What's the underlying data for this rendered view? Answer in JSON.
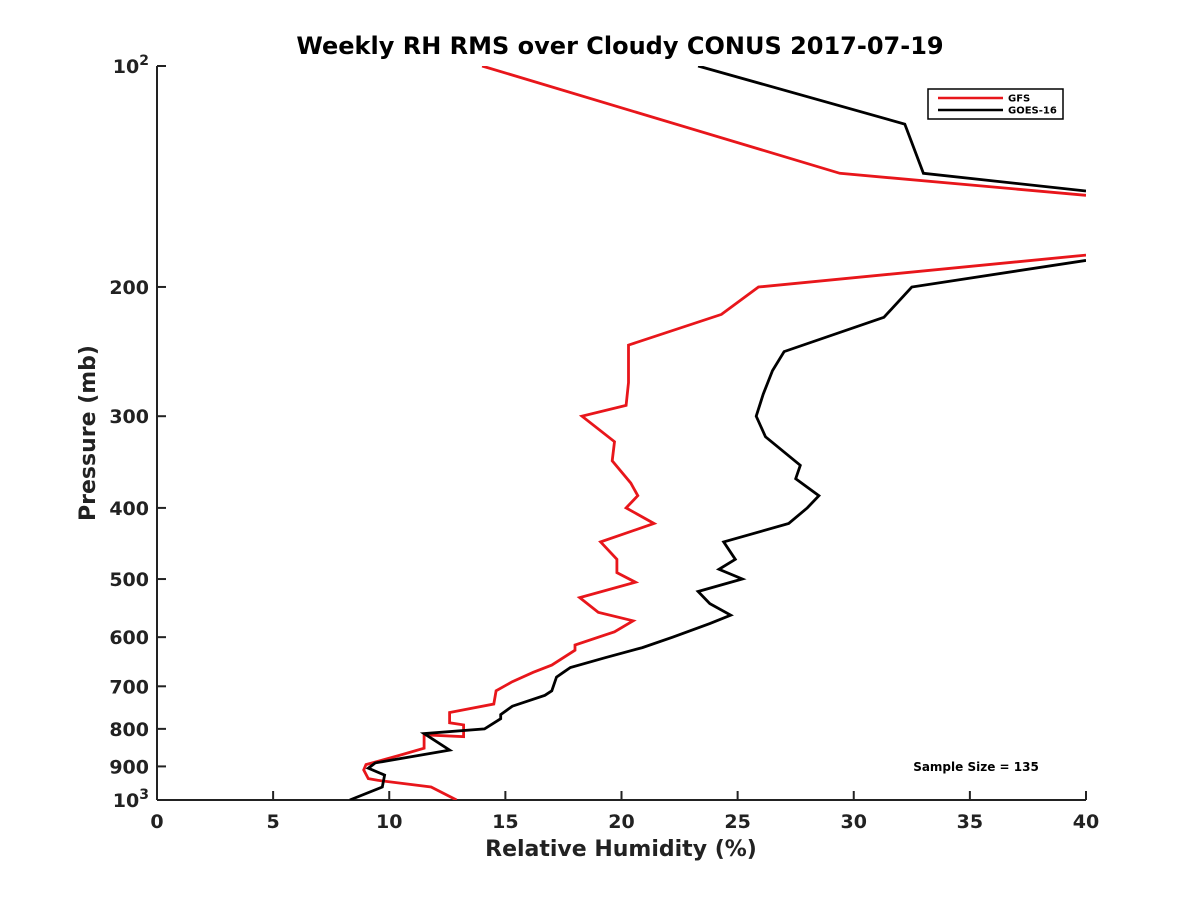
{
  "chart_data": {
    "type": "line",
    "title": "Weekly RH RMS over Cloudy CONUS 2017-07-19",
    "xlabel": "Relative Humidity (%)",
    "ylabel": "Pressure (mb)",
    "xlim": [
      0,
      40
    ],
    "ylim": [
      100,
      1000
    ],
    "y_scale": "log",
    "y_reversed": true,
    "grid": false,
    "legend_position": "top-right",
    "x_ticks": [
      0,
      5,
      10,
      15,
      20,
      25,
      30,
      35,
      40
    ],
    "y_ticks": [
      {
        "value": 100,
        "base": "10",
        "exp": "2"
      },
      {
        "value": 200,
        "label": "200"
      },
      {
        "value": 300,
        "label": "300"
      },
      {
        "value": 400,
        "label": "400"
      },
      {
        "value": 500,
        "label": "500"
      },
      {
        "value": 600,
        "label": "600"
      },
      {
        "value": 700,
        "label": "700"
      },
      {
        "value": 800,
        "label": "800"
      },
      {
        "value": 900,
        "label": "900"
      },
      {
        "value": 1000,
        "base": "10",
        "exp": "3"
      }
    ],
    "annotation": "Sample Size = 135",
    "series": [
      {
        "name": "GFS",
        "color": "#e8161b",
        "segments": [
          [
            [
              14.0,
              100
            ],
            [
              29.4,
              140
            ],
            [
              40.0,
              150
            ]
          ],
          [
            [
              40.0,
              181
            ],
            [
              25.9,
              200
            ],
            [
              24.3,
              218
            ],
            [
              20.3,
              240
            ],
            [
              20.3,
              270
            ],
            [
              20.2,
              290
            ],
            [
              18.3,
              300
            ],
            [
              19.7,
              325
            ],
            [
              19.6,
              345
            ],
            [
              20.4,
              370
            ],
            [
              20.7,
              385
            ],
            [
              20.2,
              400
            ],
            [
              21.4,
              420
            ],
            [
              19.1,
              445
            ],
            [
              19.8,
              470
            ],
            [
              19.8,
              490
            ],
            [
              20.6,
              505
            ],
            [
              18.2,
              530
            ],
            [
              19.0,
              555
            ],
            [
              20.5,
              570
            ],
            [
              19.7,
              590
            ],
            [
              18.0,
              615
            ],
            [
              18.0,
              625
            ],
            [
              17.0,
              655
            ],
            [
              16.2,
              670
            ],
            [
              15.3,
              690
            ],
            [
              14.6,
              710
            ],
            [
              14.5,
              740
            ],
            [
              12.6,
              760
            ],
            [
              12.6,
              785
            ],
            [
              13.2,
              790
            ],
            [
              13.2,
              820
            ],
            [
              11.5,
              815
            ],
            [
              11.5,
              850
            ],
            [
              10.4,
              870
            ],
            [
              9.0,
              895
            ],
            [
              8.9,
              910
            ],
            [
              9.1,
              935
            ],
            [
              9.5,
              940
            ],
            [
              11.8,
              960
            ],
            [
              12.9,
              1000
            ]
          ]
        ]
      },
      {
        "name": "GOES-16",
        "color": "#000000",
        "segments": [
          [
            [
              23.3,
              100
            ],
            [
              32.2,
              120
            ],
            [
              33.0,
              140
            ],
            [
              40.0,
              148
            ]
          ],
          [
            [
              40.0,
              184
            ],
            [
              32.5,
              200
            ],
            [
              31.3,
              220
            ],
            [
              27.0,
              245
            ],
            [
              26.5,
              260
            ],
            [
              26.1,
              280
            ],
            [
              25.8,
              300
            ],
            [
              26.2,
              320
            ],
            [
              27.7,
              350
            ],
            [
              27.5,
              365
            ],
            [
              28.5,
              385
            ],
            [
              28.0,
              400
            ],
            [
              27.2,
              420
            ],
            [
              24.4,
              445
            ],
            [
              24.9,
              470
            ],
            [
              24.2,
              485
            ],
            [
              25.2,
              500
            ],
            [
              23.3,
              520
            ],
            [
              23.8,
              540
            ],
            [
              24.7,
              560
            ],
            [
              23.8,
              575
            ],
            [
              22.2,
              600
            ],
            [
              20.9,
              620
            ],
            [
              19.3,
              640
            ],
            [
              17.8,
              660
            ],
            [
              17.5,
              670
            ],
            [
              17.2,
              680
            ],
            [
              17.0,
              710
            ],
            [
              16.7,
              720
            ],
            [
              15.3,
              745
            ],
            [
              14.8,
              765
            ],
            [
              14.8,
              775
            ],
            [
              14.1,
              800
            ],
            [
              11.5,
              812
            ],
            [
              12.6,
              855
            ],
            [
              9.4,
              890
            ],
            [
              9.1,
              905
            ],
            [
              9.8,
              925
            ],
            [
              9.7,
              960
            ],
            [
              8.3,
              1000
            ]
          ]
        ]
      }
    ]
  }
}
